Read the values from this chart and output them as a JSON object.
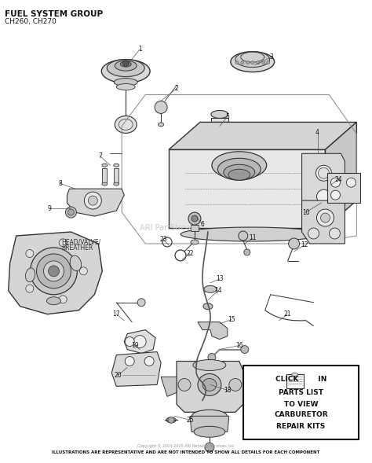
{
  "title_line1": "FUEL SYSTEM GROUP",
  "title_line2": "CH260, CH270",
  "footer": "ILLUSTRATIONS ARE REPRESENTATIVE AND ARE NOT INTENDED TO SHOW ALL DETAILS FOR EACH COMPONENT",
  "watermark": "ARI PartStream",
  "bg_color": "#ffffff",
  "line_color": "#333333",
  "gray_fill": "#e8e8e8",
  "dark_fill": "#b0b0b0",
  "figsize": [
    4.74,
    5.89
  ],
  "dpi": 100
}
